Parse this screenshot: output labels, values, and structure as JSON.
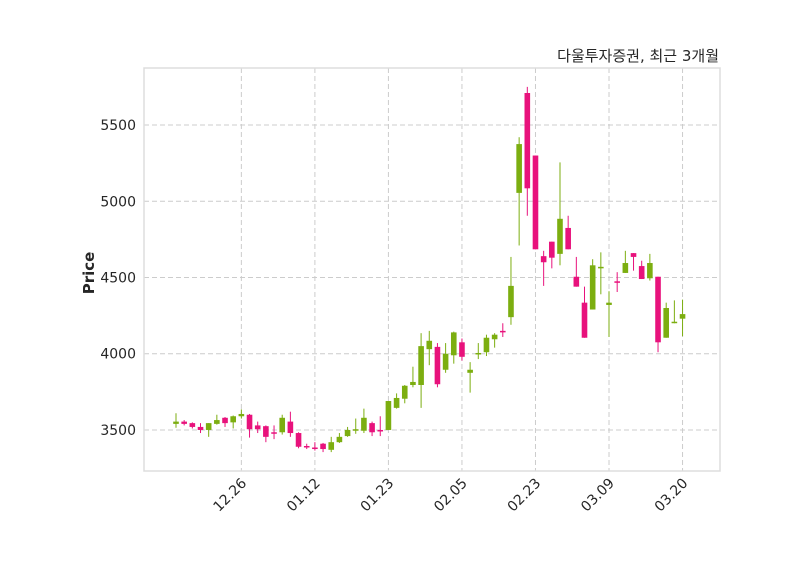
{
  "chart_data": {
    "type": "candlestick",
    "title": "다울투자증권, 최근 3개월",
    "xlabel": "",
    "ylabel": "Price",
    "ylim": [
      3231,
      5874
    ],
    "yticks": [
      3500,
      4000,
      4500,
      5000,
      5500
    ],
    "grid": true,
    "colors": {
      "up": "#7cae10",
      "down": "#e8127c",
      "grid": "#cccccc",
      "frame": "#dddddd"
    },
    "xtick_labels": [
      {
        "index": 8,
        "label": "12.26"
      },
      {
        "index": 17,
        "label": "01.12"
      },
      {
        "index": 26,
        "label": "01.23"
      },
      {
        "index": 35,
        "label": "02.05"
      },
      {
        "index": 44,
        "label": "02.23"
      },
      {
        "index": 53,
        "label": "03.09"
      },
      {
        "index": 62,
        "label": "03.20"
      }
    ],
    "ohlc": [
      [
        3540,
        3610,
        3515,
        3555
      ],
      [
        3555,
        3565,
        3530,
        3540
      ],
      [
        3545,
        3550,
        3510,
        3520
      ],
      [
        3520,
        3545,
        3480,
        3500
      ],
      [
        3500,
        3545,
        3455,
        3545
      ],
      [
        3540,
        3600,
        3535,
        3565
      ],
      [
        3580,
        3585,
        3520,
        3545
      ],
      [
        3550,
        3595,
        3510,
        3590
      ],
      [
        3590,
        3635,
        3575,
        3605
      ],
      [
        3600,
        3605,
        3450,
        3505
      ],
      [
        3530,
        3555,
        3480,
        3505
      ],
      [
        3525,
        3530,
        3420,
        3455
      ],
      [
        3485,
        3530,
        3440,
        3480
      ],
      [
        3485,
        3600,
        3470,
        3580
      ],
      [
        3555,
        3620,
        3455,
        3480
      ],
      [
        3480,
        3485,
        3380,
        3390
      ],
      [
        3395,
        3410,
        3375,
        3390
      ],
      [
        3385,
        3420,
        3365,
        3380
      ],
      [
        3410,
        3415,
        3355,
        3375
      ],
      [
        3370,
        3455,
        3355,
        3420
      ],
      [
        3420,
        3480,
        3415,
        3455
      ],
      [
        3460,
        3520,
        3455,
        3500
      ],
      [
        3495,
        3575,
        3475,
        3505
      ],
      [
        3495,
        3640,
        3480,
        3580
      ],
      [
        3545,
        3555,
        3460,
        3485
      ],
      [
        3500,
        3590,
        3460,
        3495
      ],
      [
        3500,
        3690,
        3500,
        3690
      ],
      [
        3645,
        3740,
        3640,
        3710
      ],
      [
        3705,
        3795,
        3675,
        3790
      ],
      [
        3795,
        3915,
        3780,
        3815
      ],
      [
        3795,
        4135,
        3645,
        4050
      ],
      [
        4030,
        4150,
        3925,
        4085
      ],
      [
        4045,
        4070,
        3780,
        3800
      ],
      [
        3895,
        4070,
        3875,
        4000
      ],
      [
        3990,
        4145,
        3935,
        4140
      ],
      [
        4075,
        4100,
        3955,
        3980
      ],
      [
        3875,
        3945,
        3745,
        3895
      ],
      [
        4000,
        4070,
        3965,
        4005
      ],
      [
        4010,
        4125,
        3985,
        4105
      ],
      [
        4095,
        4135,
        4040,
        4125
      ],
      [
        4150,
        4200,
        4110,
        4145
      ],
      [
        4240,
        4635,
        4190,
        4445
      ],
      [
        5055,
        5420,
        4710,
        5375
      ],
      [
        5710,
        5750,
        4905,
        5085
      ],
      [
        5300,
        5300,
        4685,
        4685
      ],
      [
        4640,
        4675,
        4445,
        4600
      ],
      [
        4735,
        4735,
        4560,
        4630
      ],
      [
        4655,
        5255,
        4580,
        4885
      ],
      [
        4825,
        4905,
        4685,
        4685
      ],
      [
        4505,
        4635,
        4440,
        4440
      ],
      [
        4335,
        4440,
        4105,
        4105
      ],
      [
        4290,
        4620,
        4290,
        4580
      ],
      [
        4565,
        4665,
        4390,
        4570
      ],
      [
        4320,
        4410,
        4110,
        4335
      ],
      [
        4475,
        4535,
        4405,
        4470
      ],
      [
        4530,
        4675,
        4530,
        4595
      ],
      [
        4660,
        4660,
        4545,
        4635
      ],
      [
        4575,
        4610,
        4490,
        4490
      ],
      [
        4495,
        4655,
        4480,
        4595
      ],
      [
        4505,
        4505,
        4010,
        4075
      ],
      [
        4105,
        4335,
        4105,
        4300
      ],
      [
        4205,
        4350,
        4200,
        4210
      ],
      [
        4230,
        4355,
        4115,
        4260
      ]
    ]
  }
}
